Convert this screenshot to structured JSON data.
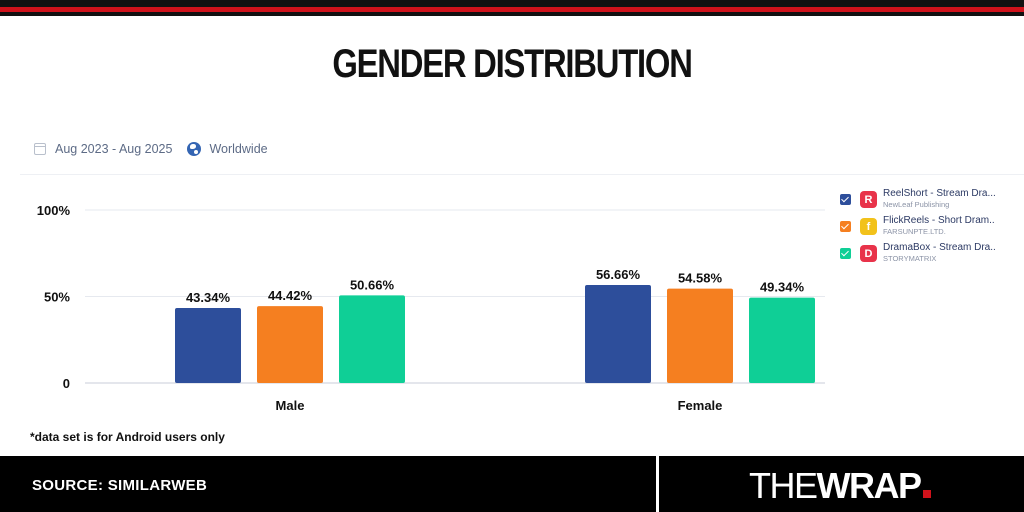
{
  "header": {
    "title": "GENDER DISTRIBUTION"
  },
  "filters": {
    "date_range": "Aug 2023 - Aug 2025",
    "region": "Worldwide",
    "calendar_icon": "calendar-icon",
    "globe_icon": "globe-icon"
  },
  "legend": {
    "items": [
      {
        "name": "ReelShort - Stream Dra...",
        "publisher": "NewLeaf Publishing",
        "color": "#2d4e9b",
        "icon_letter": "R",
        "icon_color": "#e8334a"
      },
      {
        "name": "FlickReels - Short Dram...",
        "publisher": "FARSUNPTE.LTD.",
        "color": "#f57f20",
        "icon_letter": "f",
        "icon_color": "#f2c21b"
      },
      {
        "name": "DramaBox - Stream Dra...",
        "publisher": "STORYMATRIX",
        "color": "#0fcf96",
        "icon_letter": "D",
        "icon_color": "#e8334a"
      }
    ]
  },
  "chart_data": {
    "type": "bar",
    "title": "GENDER DISTRIBUTION",
    "categories": [
      "Male",
      "Female"
    ],
    "series": [
      {
        "name": "ReelShort - Stream Dra...",
        "values": [
          43.34,
          56.66
        ],
        "color": "#2d4e9b"
      },
      {
        "name": "FlickReels - Short Dram...",
        "values": [
          44.42,
          54.58
        ],
        "color": "#f57f20"
      },
      {
        "name": "DramaBox - Stream Dra...",
        "values": [
          50.66,
          49.34
        ],
        "color": "#0fcf96"
      }
    ],
    "value_labels": [
      [
        "43.34%",
        "56.66%"
      ],
      [
        "44.42%",
        "54.58%"
      ],
      [
        "50.66%",
        "49.34%"
      ]
    ],
    "yticks": [
      0,
      50,
      100
    ],
    "ytick_labels": [
      "0",
      "50%",
      "100%"
    ],
    "ylim": [
      0,
      100
    ],
    "grid": true,
    "legend_position": "right"
  },
  "footnote": "*data set is for Android users only",
  "footer": {
    "source": "SOURCE: SIMILARWEB",
    "logo_the": "THE",
    "logo_wrap": "WRAP",
    "accent_color": "#d0121b"
  }
}
